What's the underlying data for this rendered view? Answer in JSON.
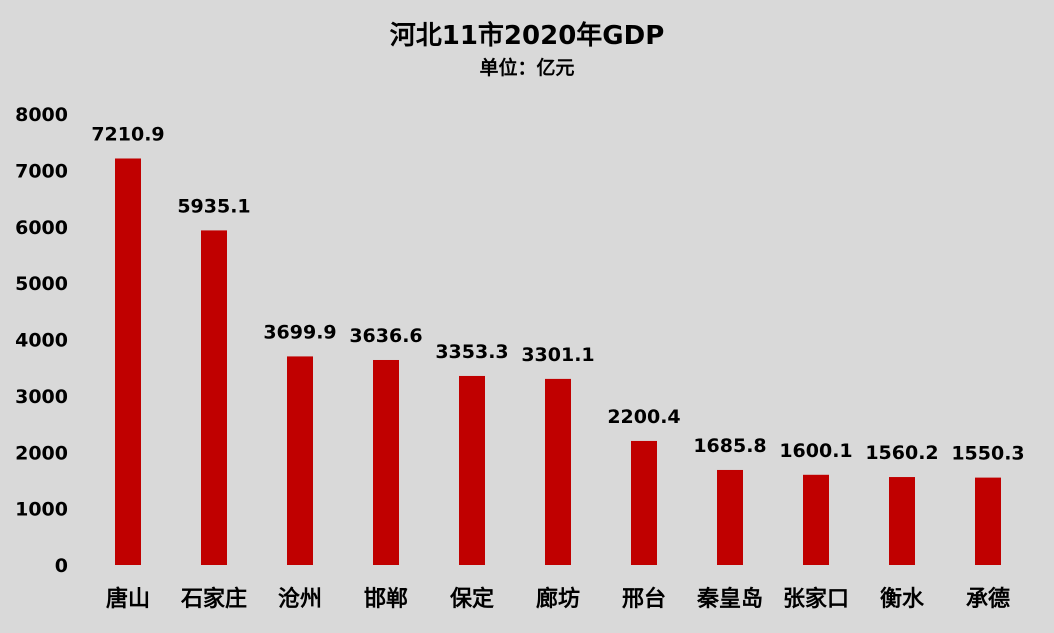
{
  "chart_data": {
    "type": "bar",
    "title": "河北11市2020年GDP",
    "subtitle": "单位：亿元",
    "categories": [
      "唐山",
      "石家庄",
      "沧州",
      "邯郸",
      "保定",
      "廊坊",
      "邢台",
      "秦皇岛",
      "张家口",
      "衡水",
      "承德"
    ],
    "values": [
      7210.9,
      5935.1,
      3699.9,
      3636.6,
      3353.3,
      3301.1,
      2200.4,
      1685.8,
      1600.1,
      1560.2,
      1550.3
    ],
    "data_labels": [
      "7210.9",
      "5935.1",
      "3699.9",
      "3636.6",
      "3353.3",
      "3301.1",
      "2200.4",
      "1685.8",
      "1600.1",
      "1560.2",
      "1550.3"
    ],
    "ylim": [
      0,
      8000
    ],
    "yticks": [
      0,
      1000,
      2000,
      3000,
      4000,
      5000,
      6000,
      7000,
      8000
    ],
    "xlabel": "",
    "ylabel": "",
    "grid": false,
    "legend": "none",
    "bar_color": "#c00000",
    "background_color": "#d9d9d9"
  }
}
